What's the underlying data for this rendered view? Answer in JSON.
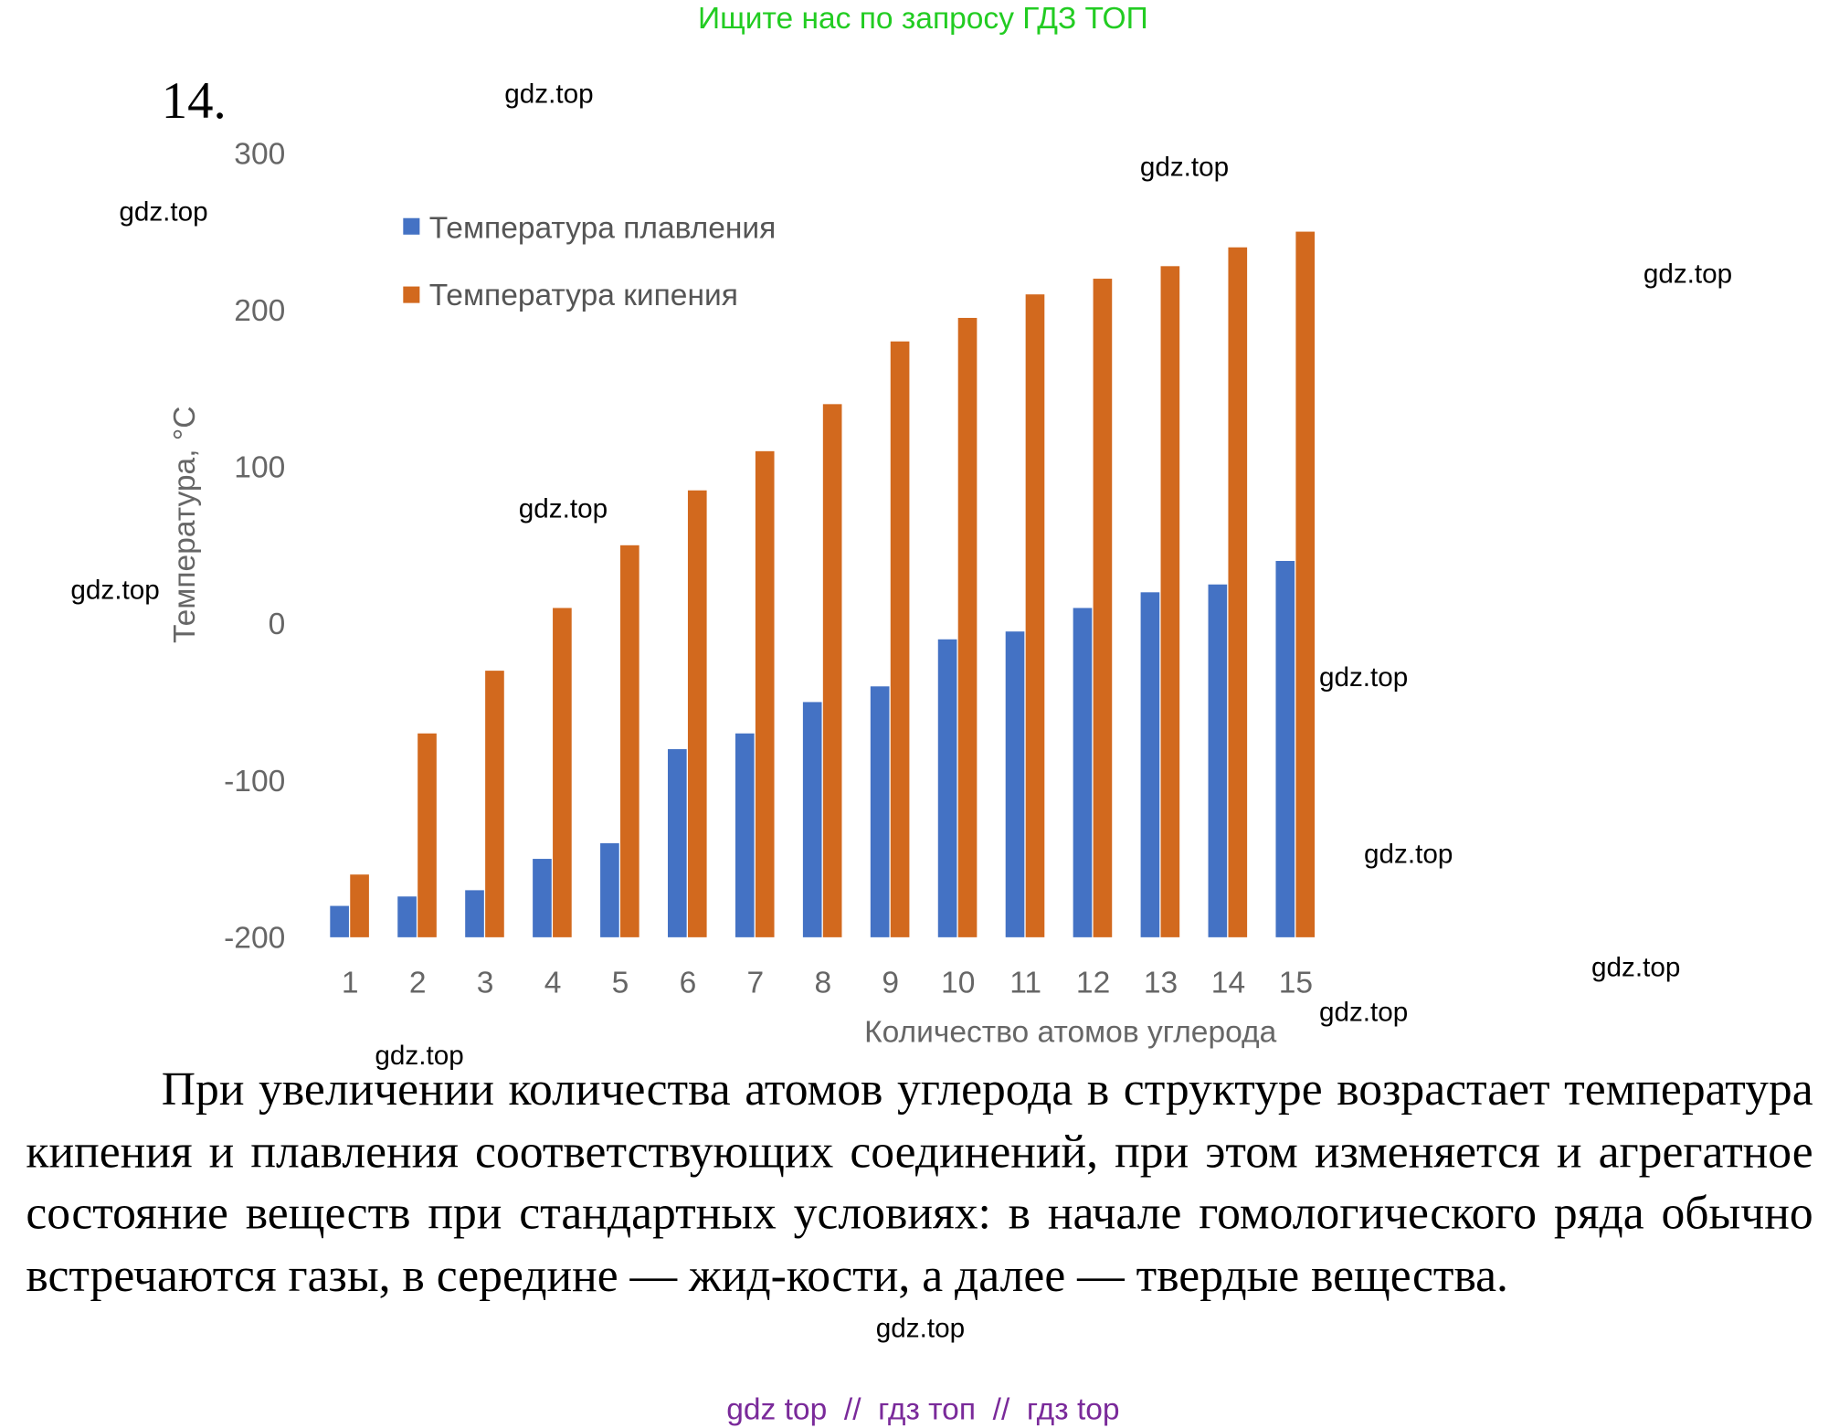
{
  "banner": "Ищите нас по запросу ГДЗ ТОП",
  "problem_number": "14.",
  "chart_data": {
    "type": "bar",
    "title": "",
    "xlabel": "Количество атомов углерода",
    "ylabel": "Температура, °C",
    "ylim": [
      -200,
      300
    ],
    "yticks": [
      "-200",
      "-100",
      "0",
      "100",
      "200",
      "300"
    ],
    "categories": [
      "1",
      "2",
      "3",
      "4",
      "5",
      "6",
      "7",
      "8",
      "9",
      "10",
      "11",
      "12",
      "13",
      "14",
      "15"
    ],
    "legend_position": "top-left",
    "grid": false,
    "series": [
      {
        "name": "Температура плавления",
        "color": "#4472c4",
        "values": [
          -180,
          -174,
          -170,
          -150,
          -140,
          -80,
          -70,
          -50,
          -40,
          -10,
          -5,
          10,
          20,
          25,
          40
        ]
      },
      {
        "name": "Температура кипения",
        "color": "#d2691e",
        "values": [
          -160,
          -70,
          -30,
          10,
          50,
          85,
          110,
          140,
          180,
          195,
          210,
          220,
          228,
          240,
          250
        ]
      }
    ]
  },
  "paragraph": "При увеличении количества атомов углерода в структуре возрастает температура кипения и плавления соответствующих соединений, при этом изменяется и агрегатное состояние веществ при стандартных условиях: в начале гомологического ряда обычно встречаются газы, в середине — жид-кости, а далее — твердые вещества.",
  "watermarks": [
    "gdz.top",
    "gdz.top",
    "gdz.top",
    "gdz.top",
    "gdz.top",
    "gdz.top",
    "gdz.top",
    "gdz.top",
    "gdz.top",
    "gdz.top",
    "gdz.top",
    "gdz.top"
  ],
  "footer": "gdz top  //  гдз топ  //  гдз top"
}
